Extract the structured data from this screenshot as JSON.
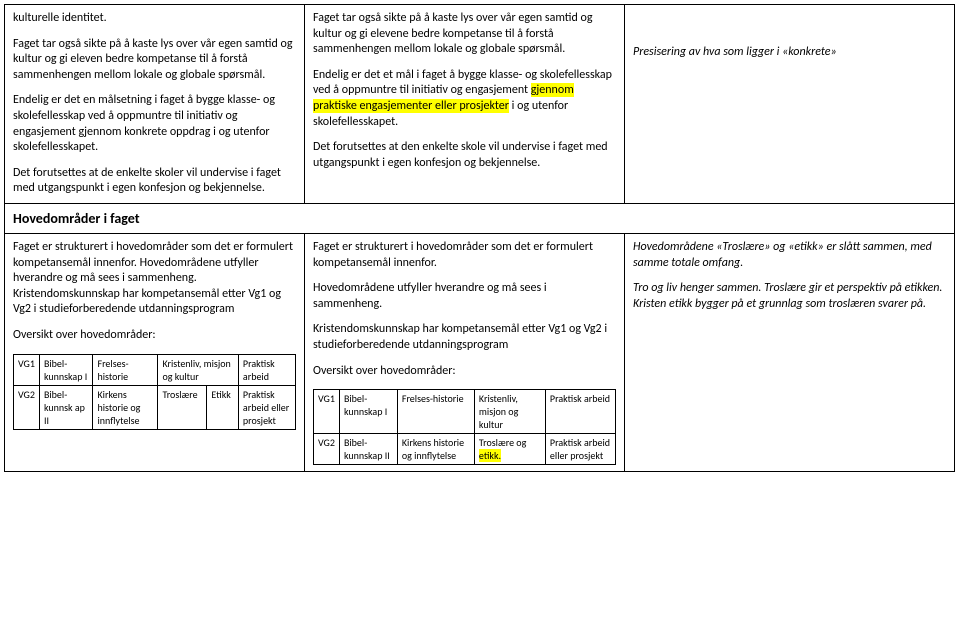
{
  "row1": {
    "left": {
      "p1": "kulturelle identitet.",
      "p2": "Faget tar også sikte på å kaste lys over vår egen samtid og kultur og gi eleven bedre kompetanse til å forstå sammenhengen mellom lokale og globale spørsmål.",
      "p3": "Endelig er det en målsetning i faget å bygge klasse- og skolefellesskap ved å oppmuntre til initiativ og engasjement gjennom konkrete oppdrag i og utenfor skolefellesskapet.",
      "p4": "Det forutsettes at de enkelte skoler vil undervise i faget med utgangspunkt i egen konfesjon og bekjennelse."
    },
    "mid": {
      "p1": "Faget tar også sikte på å kaste lys over vår egen samtid og kultur og gi elevene bedre kompetanse til å forstå sammenhengen mellom lokale og globale spørsmål.",
      "p2a": "Endelig er det et mål i faget å bygge klasse- og skolefellesskap ved å oppmuntre til initiativ og engasjement ",
      "p2h": "gjennom praktiske engasjementer eller prosjekter",
      "p2b": " i og utenfor skolefellesskapet.",
      "p3": "Det forutsettes at den enkelte skole vil undervise i faget med utgangspunkt i egen konfesjon og bekjennelse."
    },
    "right": {
      "p1": "Presisering av hva som ligger i «konkrete»"
    }
  },
  "heading": "Hovedområder i faget",
  "row2": {
    "left": {
      "p1": "Faget er strukturert i hovedområder som det er formulert kompetansemål innenfor. Hovedområdene utfyller hverandre og må sees i sammenheng. Kristendomskunnskap har kompetansemål etter Vg1 og Vg2 i studieforberedende utdanningsprogram",
      "p2": "Oversikt over hovedområder:",
      "table": {
        "r1": {
          "c1": "VG1",
          "c2": "Bibel-kunnskap I",
          "c3": "Frelses-historie",
          "c4": "Kristenliv, misjon og kultur",
          "c5": "Praktisk arbeid"
        },
        "r2": {
          "c1": "VG2",
          "c2": "Bibel-kunnsk ap II",
          "c3": "Kirkens historie og innflytelse",
          "c4": "Troslære",
          "c5": "Etikk",
          "c6": "Praktisk arbeid eller prosjekt"
        }
      }
    },
    "mid": {
      "p1": "Faget er strukturert i hovedområder som det er formulert kompetansemål innenfor.",
      "p2": "Hovedområdene utfyller hverandre og må sees i sammenheng.",
      "p3": "Kristendomskunnskap har kompetansemål etter Vg1 og Vg2 i studieforberedende utdanningsprogram",
      "p4": "Oversikt over hovedområder:",
      "table": {
        "r1": {
          "c1": "VG1",
          "c2": "Bibel-kunnskap I",
          "c3": "Frelses-historie",
          "c4": "Kristenliv, misjon og kultur",
          "c5": "Praktisk arbeid"
        },
        "r2": {
          "c1": "VG2",
          "c2": "Bibel-kunnskap II",
          "c3": "Kirkens historie og innflytelse",
          "c4a": "Troslære og ",
          "c4h": "etikk.",
          "c5": "Praktisk arbeid eller prosjekt"
        }
      }
    },
    "right": {
      "p1": "Hovedområdene «Troslære» og «etikk» er slått sammen, med samme totale omfang.",
      "p2": "Tro og liv henger sammen. Troslære gir et perspektiv på etikken. Kristen etikk bygger på et grunnlag som troslæren svarer på."
    }
  }
}
